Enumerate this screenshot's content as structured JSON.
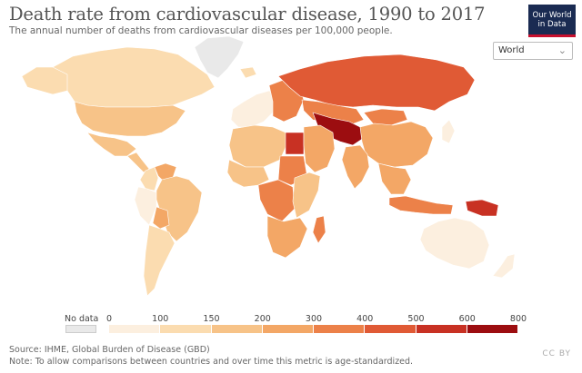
{
  "header": {
    "title": "Death rate from cardiovascular disease, 1990 to 2017",
    "subtitle": "The annual number of deaths from cardiovascular diseases per 100,000 people."
  },
  "logo": {
    "line1": "Our World",
    "line2": "in Data"
  },
  "entity_selector": {
    "value": "World",
    "icon": "chevron-down-icon"
  },
  "legend": {
    "no_data_label": "No data",
    "no_data_color": "#e9e9e9",
    "bins": [
      {
        "from": 0,
        "to": 100,
        "color": "#fcefdf"
      },
      {
        "from": 100,
        "to": 150,
        "color": "#fbdcb0"
      },
      {
        "from": 150,
        "to": 200,
        "color": "#f7c388"
      },
      {
        "from": 200,
        "to": 300,
        "color": "#f3a766"
      },
      {
        "from": 300,
        "to": 400,
        "color": "#ec8149"
      },
      {
        "from": 400,
        "to": 500,
        "color": "#e05a35"
      },
      {
        "from": 500,
        "to": 600,
        "color": "#c83123"
      },
      {
        "from": 600,
        "to": 800,
        "color": "#9c0d10"
      }
    ],
    "ticks": [
      "0",
      "100",
      "150",
      "200",
      "300",
      "400",
      "500",
      "600",
      "800"
    ]
  },
  "map_regions": [
    {
      "name": "Greenland",
      "color": "#e9e9e9"
    },
    {
      "name": "Canada",
      "color": "#fbdcb0"
    },
    {
      "name": "Alaska",
      "color": "#fbdcb0"
    },
    {
      "name": "United States",
      "color": "#f7c388"
    },
    {
      "name": "Mexico",
      "color": "#f7c388"
    },
    {
      "name": "Central America",
      "color": "#f7c388"
    },
    {
      "name": "Colombia",
      "color": "#fbdcb0"
    },
    {
      "name": "Venezuela",
      "color": "#f3a766"
    },
    {
      "name": "Peru",
      "color": "#fcefdf"
    },
    {
      "name": "Brazil",
      "color": "#f7c388"
    },
    {
      "name": "Bolivia",
      "color": "#f3a766"
    },
    {
      "name": "Southern Cone",
      "color": "#fbdcb0"
    },
    {
      "name": "Iceland",
      "color": "#fbdcb0"
    },
    {
      "name": "Western Europe",
      "color": "#fcefdf"
    },
    {
      "name": "Eastern Europe",
      "color": "#ec8149"
    },
    {
      "name": "Russia",
      "color": "#e05a35"
    },
    {
      "name": "Kazakhstan",
      "color": "#ec8149"
    },
    {
      "name": "Central Asia",
      "color": "#9c0d10"
    },
    {
      "name": "Mongolia",
      "color": "#ec8149"
    },
    {
      "name": "China",
      "color": "#f3a766"
    },
    {
      "name": "India",
      "color": "#f3a766"
    },
    {
      "name": "Southeast Asia",
      "color": "#f3a766"
    },
    {
      "name": "Japan",
      "color": "#fcefdf"
    },
    {
      "name": "North Africa",
      "color": "#f7c388"
    },
    {
      "name": "Egypt",
      "color": "#c83123"
    },
    {
      "name": "Middle East",
      "color": "#f3a766"
    },
    {
      "name": "West Africa",
      "color": "#f7c388"
    },
    {
      "name": "Sudan",
      "color": "#ec8149"
    },
    {
      "name": "Central Africa",
      "color": "#ec8149"
    },
    {
      "name": "East Africa",
      "color": "#f7c388"
    },
    {
      "name": "Southern Africa",
      "color": "#f3a766"
    },
    {
      "name": "Madagascar",
      "color": "#ec8149"
    },
    {
      "name": "Indonesia",
      "color": "#ec8149"
    },
    {
      "name": "Papua New Guinea",
      "color": "#c83123"
    },
    {
      "name": "Australia",
      "color": "#fcefdf"
    },
    {
      "name": "New Zealand",
      "color": "#fcefdf"
    }
  ],
  "footer": {
    "source": "Source: IHME, Global Burden of Disease (GBD)",
    "note": "Note: To allow comparisons between countries and over time this metric is age-standardized.",
    "license": "CC BY"
  }
}
